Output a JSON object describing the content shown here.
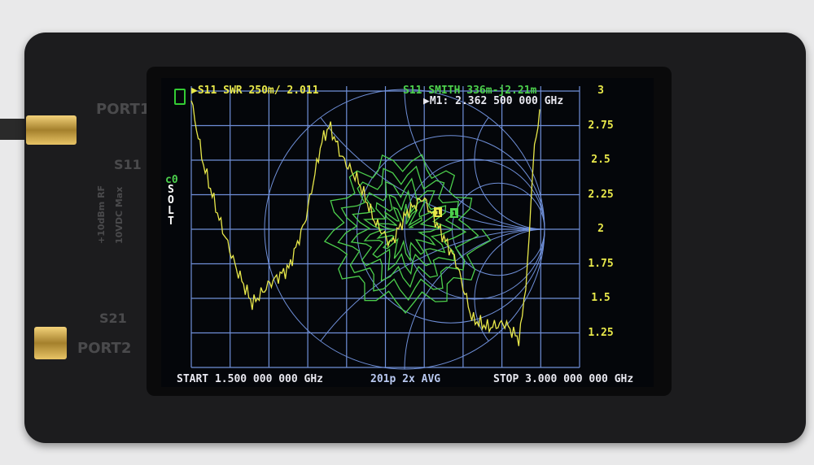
{
  "device_labels": {
    "port1": "PORT1",
    "s11": "S11",
    "rf_max": "+10dBm RF",
    "dc_max": "10VDC Max",
    "s21": "S21",
    "port2": "PORT2"
  },
  "screen": {
    "trace1": "▶S11 SWR 250m/ 2.011",
    "trace2": "S11 SMITH  336m-j2.21m",
    "marker": "▶M1: 2.362 500 000 GHz",
    "cal_slot": "c0",
    "cal_type": [
      "S",
      "O",
      "L",
      "T"
    ],
    "start": "START 1.500 000 000 GHz",
    "points": "201p  2x AVG",
    "stop": "STOP 3.000 000 000 GHz",
    "marker_labels": [
      "1",
      "1"
    ],
    "y_ticks": [
      "3",
      "2.75",
      "2.5",
      "2.25",
      "2",
      "1.75",
      "1.5",
      "1.25"
    ]
  },
  "colors": {
    "swr_trace": "#e8e84a",
    "smith_trace": "#4ccf4c",
    "grid": "#6f8fd8",
    "text": "#e8e8f0"
  },
  "swr_trace": {
    "freq_ghz": [
      1.5,
      1.547,
      1.61,
      1.673,
      1.736,
      1.799,
      1.877,
      1.94,
      2.003,
      2.034,
      2.082,
      2.145,
      2.208,
      2.271,
      2.333,
      2.396,
      2.459,
      2.522,
      2.585,
      2.648,
      2.711,
      2.768,
      2.799,
      2.821,
      2.836,
      2.846
    ],
    "swr": [
      2.93,
      2.47,
      2.06,
      1.72,
      1.46,
      1.6,
      1.72,
      2.06,
      2.63,
      2.75,
      2.52,
      2.35,
      2.06,
      1.89,
      2.12,
      2.23,
      2.0,
      1.77,
      1.35,
      1.29,
      1.32,
      1.2,
      1.72,
      2.52,
      2.7,
      2.88
    ]
  }
}
